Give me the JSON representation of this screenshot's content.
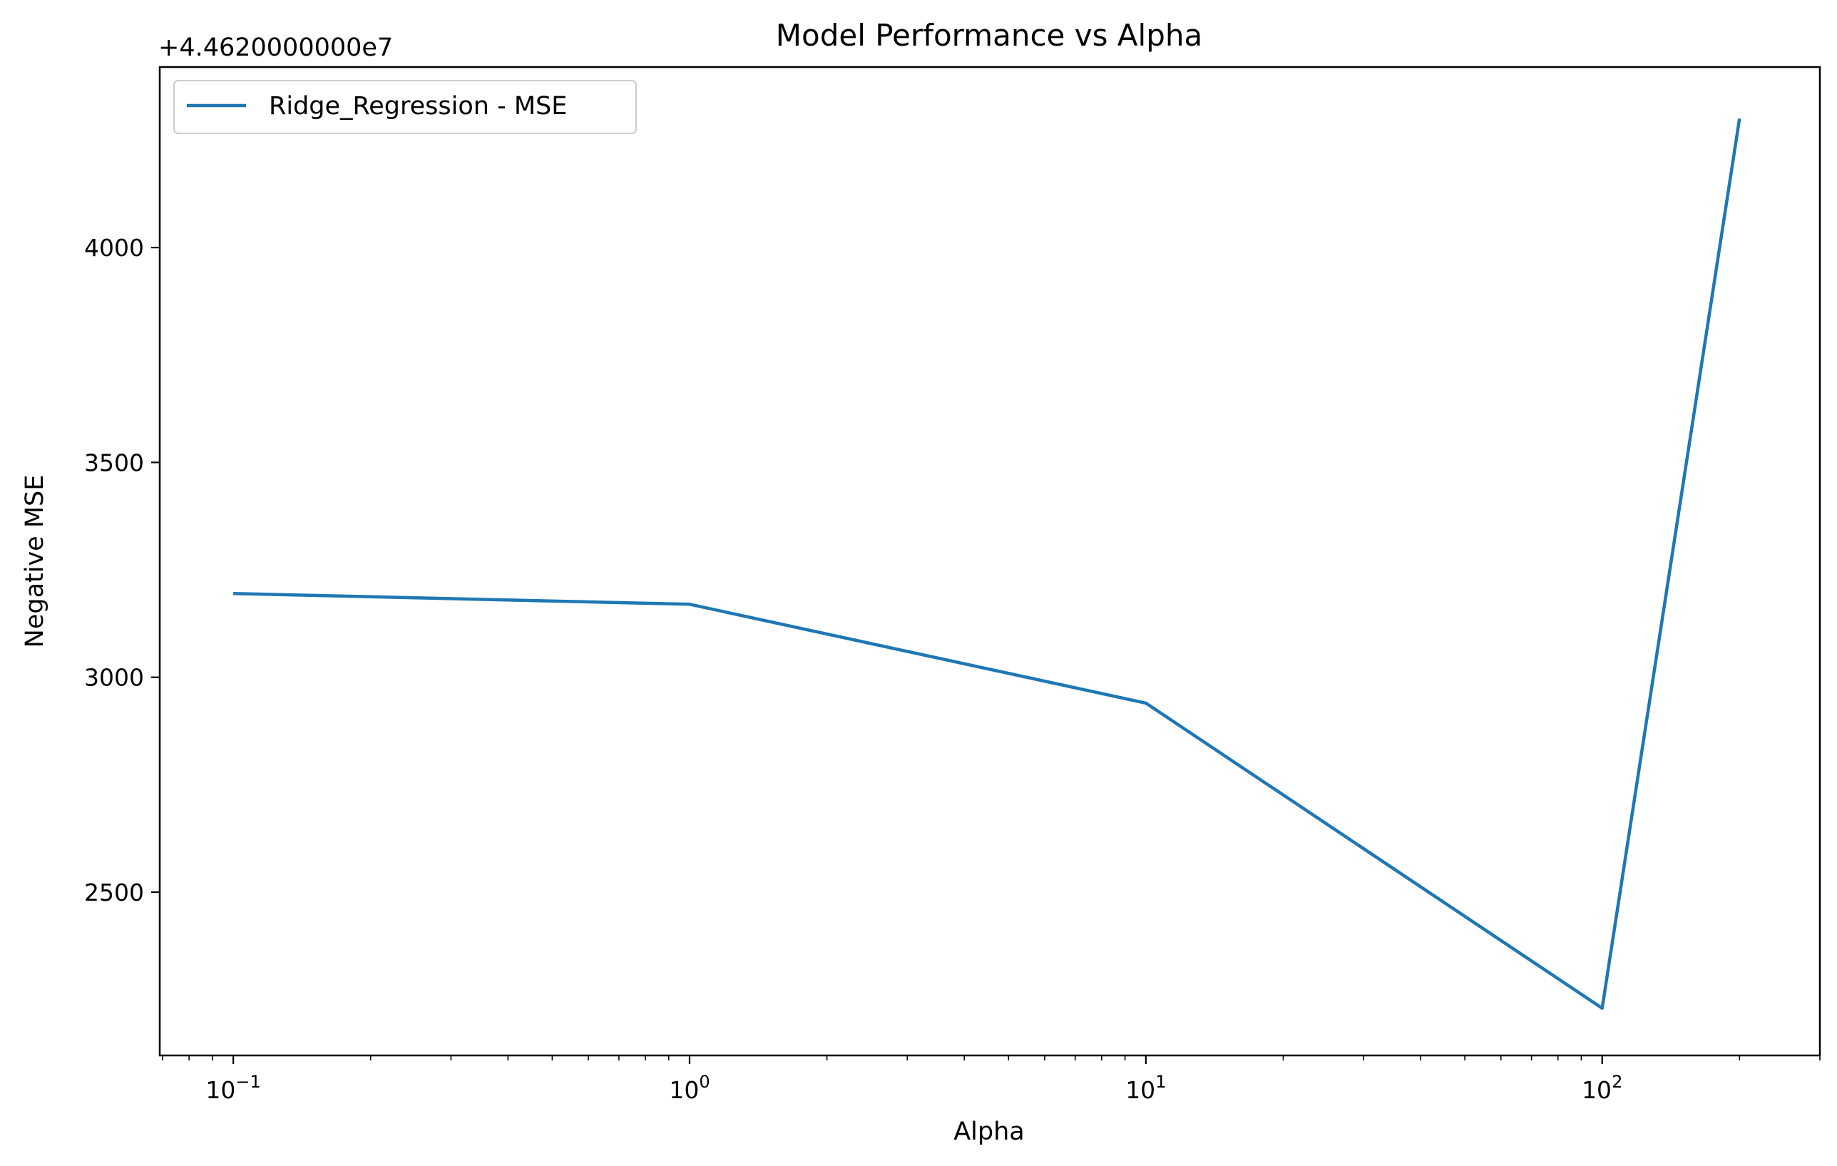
{
  "chart_data": {
    "type": "line",
    "title": "Model Performance vs Alpha",
    "xlabel": "Alpha",
    "ylabel": "Negative MSE",
    "x_scale": "log",
    "y_offset_text": "+4.4620000000e7",
    "xlim": [
      0.069,
      300
    ],
    "ylim": [
      2120,
      4420
    ],
    "xticks": [
      {
        "base": "10",
        "exp": "−1"
      },
      {
        "base": "10",
        "exp": "0"
      },
      {
        "base": "10",
        "exp": "1"
      },
      {
        "base": "10",
        "exp": "2"
      }
    ],
    "yticks": [
      "2500",
      "3000",
      "3500",
      "4000"
    ],
    "grid": false,
    "legend_position": "upper-left",
    "series": [
      {
        "name": "Ridge_Regression - MSE",
        "color": "#1f77b4",
        "x": [
          0.1,
          1,
          10,
          100,
          200
        ],
        "y": [
          3195,
          3170,
          2940,
          2230,
          4300
        ]
      }
    ]
  }
}
